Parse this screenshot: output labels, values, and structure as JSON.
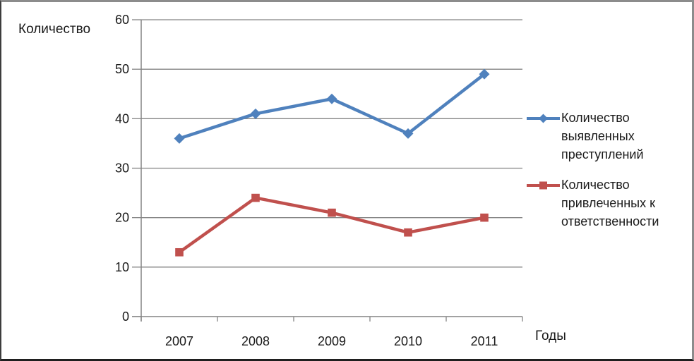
{
  "chart_data": {
    "type": "line",
    "title": "",
    "ylabel": "Количество",
    "xlabel": "Годы",
    "categories": [
      "2007",
      "2008",
      "2009",
      "2010",
      "2011"
    ],
    "series": [
      {
        "name": "Количество выявленных преступлений",
        "values": [
          36,
          41,
          44,
          37,
          49
        ],
        "color": "#4F81BD",
        "marker": "diamond"
      },
      {
        "name": "Количество привлеченных к ответственности",
        "values": [
          13,
          24,
          21,
          17,
          20
        ],
        "color": "#C0504D",
        "marker": "square"
      }
    ],
    "ylim": [
      0,
      60
    ],
    "yticks": [
      0,
      10,
      20,
      30,
      40,
      50,
      60
    ],
    "grid": true,
    "legend_position": "right",
    "gridline_color": "#848484",
    "text_color": "#1a1a1a"
  }
}
